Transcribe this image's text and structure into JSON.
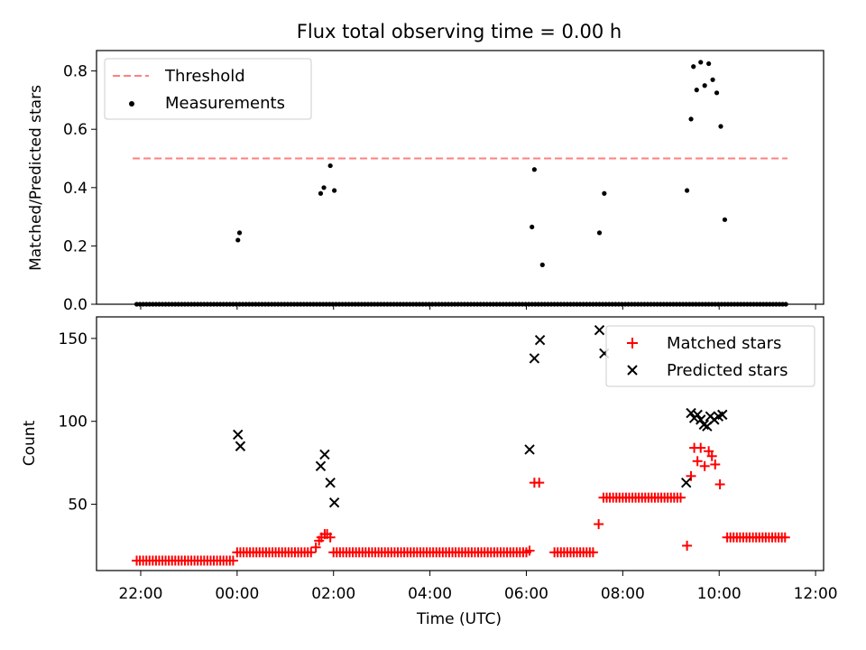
{
  "chart_data": [
    {
      "type": "scatter",
      "title": "Flux total observing time = 0.00 h",
      "xlabel": "",
      "ylabel": "Matched/Predicted stars",
      "xlim": [
        "21:05",
        "12:10"
      ],
      "ylim": [
        0,
        0.87
      ],
      "yticks": [
        0.0,
        0.2,
        0.4,
        0.6,
        0.8
      ],
      "ytick_labels": [
        "0.0",
        "0.2",
        "0.4",
        "0.6",
        "0.8"
      ],
      "legend": {
        "placement": "upper-left",
        "entries": [
          "Threshold",
          "Measurements"
        ]
      },
      "colors": {
        "threshold": "#ff7f7f",
        "points": "#000000"
      },
      "threshold": {
        "name": "Threshold",
        "y": 0.5,
        "x_start": "21:50",
        "x_end": "11:25"
      },
      "series": [
        {
          "name": "Measurements",
          "zeros_from": "21:55",
          "zeros_to": "11:25",
          "zeros_step_min": 4,
          "points": [
            [
              "00:01",
              0.22
            ],
            [
              "00:03",
              0.245
            ],
            [
              "01:44",
              0.38
            ],
            [
              "01:48",
              0.4
            ],
            [
              "01:56",
              0.475
            ],
            [
              "02:01",
              0.39
            ],
            [
              "06:07",
              0.265
            ],
            [
              "06:10",
              0.462
            ],
            [
              "06:20",
              0.135
            ],
            [
              "07:31",
              0.245
            ],
            [
              "07:37",
              0.38
            ],
            [
              "09:20",
              0.39
            ],
            [
              "09:25",
              0.635
            ],
            [
              "09:28",
              0.815
            ],
            [
              "09:32",
              0.735
            ],
            [
              "09:37",
              0.83
            ],
            [
              "09:42",
              0.75
            ],
            [
              "09:47",
              0.825
            ],
            [
              "09:52",
              0.77
            ],
            [
              "09:57",
              0.725
            ],
            [
              "10:02",
              0.61
            ],
            [
              "10:07",
              0.29
            ]
          ]
        }
      ]
    },
    {
      "type": "scatter",
      "title": "",
      "xlabel": "Time (UTC)",
      "ylabel": "Count",
      "xlim": [
        "21:05",
        "12:10"
      ],
      "ylim": [
        10,
        163
      ],
      "yticks": [
        50,
        100,
        150
      ],
      "ytick_labels": [
        "50",
        "100",
        "150"
      ],
      "xticks": [
        "22:00",
        "00:00",
        "02:00",
        "04:00",
        "06:00",
        "08:00",
        "10:00",
        "12:00"
      ],
      "legend": {
        "placement": "upper-right",
        "entries": [
          "Matched stars",
          "Predicted stars"
        ]
      },
      "colors": {
        "matched": "#ff0000",
        "predicted": "#000000"
      },
      "series": [
        {
          "name": "Matched stars",
          "segments": [
            {
              "from": "21:55",
              "to": "23:55",
              "y": 16,
              "step_min": 4
            },
            {
              "from": "00:00",
              "to": "01:35",
              "y": 21,
              "step_min": 4
            },
            {
              "from": "02:00",
              "to": "06:00",
              "y": 21,
              "step_min": 4
            },
            {
              "from": "06:35",
              "to": "07:25",
              "y": 21,
              "step_min": 4
            },
            {
              "from": "07:40",
              "to": "09:15",
              "y": 54,
              "step_min": 4
            },
            {
              "from": "10:10",
              "to": "11:25",
              "y": 30,
              "step_min": 4
            }
          ],
          "points": [
            [
              "01:38",
              24
            ],
            [
              "01:42",
              28
            ],
            [
              "01:45",
              30
            ],
            [
              "01:49",
              32
            ],
            [
              "01:52",
              32
            ],
            [
              "01:56",
              30
            ],
            [
              "06:04",
              22
            ],
            [
              "06:10",
              63
            ],
            [
              "06:16",
              63
            ],
            [
              "07:30",
              38
            ],
            [
              "07:36",
              54
            ],
            [
              "09:20",
              25
            ],
            [
              "09:25",
              67
            ],
            [
              "09:29",
              84
            ],
            [
              "09:33",
              76
            ],
            [
              "09:37",
              84
            ],
            [
              "09:42",
              73
            ],
            [
              "09:47",
              82
            ],
            [
              "09:51",
              79
            ],
            [
              "09:55",
              74
            ],
            [
              "10:01",
              62
            ]
          ]
        },
        {
          "name": "Predicted stars",
          "points": [
            [
              "00:01",
              92
            ],
            [
              "00:04",
              85
            ],
            [
              "01:44",
              73
            ],
            [
              "01:49",
              80
            ],
            [
              "01:56",
              63
            ],
            [
              "02:01",
              51
            ],
            [
              "06:04",
              83
            ],
            [
              "06:10",
              138
            ],
            [
              "06:17",
              149
            ],
            [
              "07:31",
              155
            ],
            [
              "07:37",
              141
            ],
            [
              "09:19",
              63
            ],
            [
              "09:25",
              105
            ],
            [
              "09:29",
              102
            ],
            [
              "09:33",
              104
            ],
            [
              "09:37",
              101
            ],
            [
              "09:41",
              98
            ],
            [
              "09:45",
              97
            ],
            [
              "09:49",
              103
            ],
            [
              "09:54",
              101
            ],
            [
              "09:59",
              103
            ],
            [
              "10:04",
              104
            ]
          ]
        }
      ]
    }
  ]
}
